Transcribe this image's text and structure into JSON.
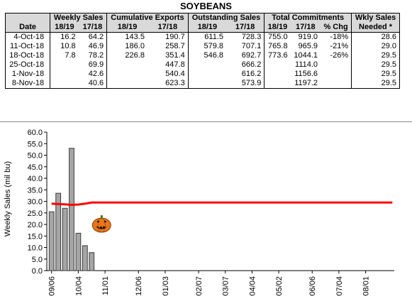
{
  "table": {
    "title": "SOYBEANS",
    "group_headers": [
      "Weekly Sales",
      "Cumulative Exports",
      "Outstanding Sales",
      "Total Commitments",
      "Wkly Sales"
    ],
    "subheaders": [
      "Date",
      "18/19",
      "17/18",
      "18/19",
      "17/18",
      "18/19",
      "17/18",
      "18/19",
      "17/18",
      "% Chg",
      "Needed *"
    ],
    "rows": [
      [
        "4-Oct-18",
        "16.2",
        "64.2",
        "143.5",
        "190.7",
        "611.5",
        "728.3",
        "755.0",
        "919.0",
        "-18%",
        "28.6"
      ],
      [
        "11-Oct-18",
        "10.8",
        "46.9",
        "186.0",
        "258.7",
        "579.8",
        "707.1",
        "765.8",
        "965.9",
        "-21%",
        "29.0"
      ],
      [
        "18-Oct-18",
        "7.8",
        "78.2",
        "226.8",
        "351.4",
        "546.8",
        "692.7",
        "773.6",
        "1044.1",
        "-26%",
        "29.5"
      ],
      [
        "25-Oct-18",
        "",
        "69.9",
        "",
        "447.8",
        "",
        "666.2",
        "",
        "1114.0",
        "",
        "29.5"
      ],
      [
        "1-Nov-18",
        "",
        "42.6",
        "",
        "540.4",
        "",
        "616.2",
        "",
        "1156.6",
        "",
        "29.5"
      ],
      [
        "8-Nov-18",
        "",
        "40.6",
        "",
        "623.3",
        "",
        "573.9",
        "",
        "1197.2",
        "",
        "29.5"
      ]
    ]
  },
  "chart_data": {
    "type": "bar",
    "ylabel": "Weekly Sales (mil bu)",
    "ylim": [
      0,
      60
    ],
    "yticks": [
      "0.0",
      "5.0",
      "10.0",
      "15.0",
      "20.0",
      "25.0",
      "30.0",
      "35.0",
      "40.0",
      "45.0",
      "50.0",
      "55.0",
      "60.0"
    ],
    "xlim": [
      "2018-09-01",
      "2019-08-31"
    ],
    "xticks": [
      {
        "date": "2018-09-06",
        "label": "09/06"
      },
      {
        "date": "2018-10-04",
        "label": "10/04"
      },
      {
        "date": "2018-11-01",
        "label": "11/01"
      },
      {
        "date": "2018-12-06",
        "label": "12/06"
      },
      {
        "date": "2019-01-03",
        "label": "01/03"
      },
      {
        "date": "2019-02-07",
        "label": "02/07"
      },
      {
        "date": "2019-03-07",
        "label": "03/07"
      },
      {
        "date": "2019-04-04",
        "label": "04/04"
      },
      {
        "date": "2019-05-02",
        "label": "05/02"
      },
      {
        "date": "2019-06-06",
        "label": "06/06"
      },
      {
        "date": "2019-07-04",
        "label": "07/04"
      },
      {
        "date": "2019-08-01",
        "label": "08/01"
      }
    ],
    "bars": {
      "color": "#a6a6a6",
      "points": [
        {
          "date": "2018-09-06",
          "value": 25.5
        },
        {
          "date": "2018-09-13",
          "value": 33.5
        },
        {
          "date": "2018-09-20",
          "value": 27.0
        },
        {
          "date": "2018-09-27",
          "value": 53.0
        },
        {
          "date": "2018-10-04",
          "value": 16.2
        },
        {
          "date": "2018-10-11",
          "value": 10.8
        },
        {
          "date": "2018-10-18",
          "value": 7.8
        }
      ]
    },
    "line": {
      "color": "#ff0000",
      "points": [
        {
          "date": "2018-09-06",
          "value": 29.0
        },
        {
          "date": "2018-09-20",
          "value": 28.7
        },
        {
          "date": "2018-09-27",
          "value": 28.5
        },
        {
          "date": "2018-10-04",
          "value": 28.6
        },
        {
          "date": "2018-10-11",
          "value": 29.0
        },
        {
          "date": "2018-10-18",
          "value": 29.5
        },
        {
          "date": "2019-08-29",
          "value": 29.5
        }
      ]
    },
    "annotation": {
      "kind": "pumpkin-icon",
      "date": "2018-10-18"
    },
    "grid": false
  }
}
